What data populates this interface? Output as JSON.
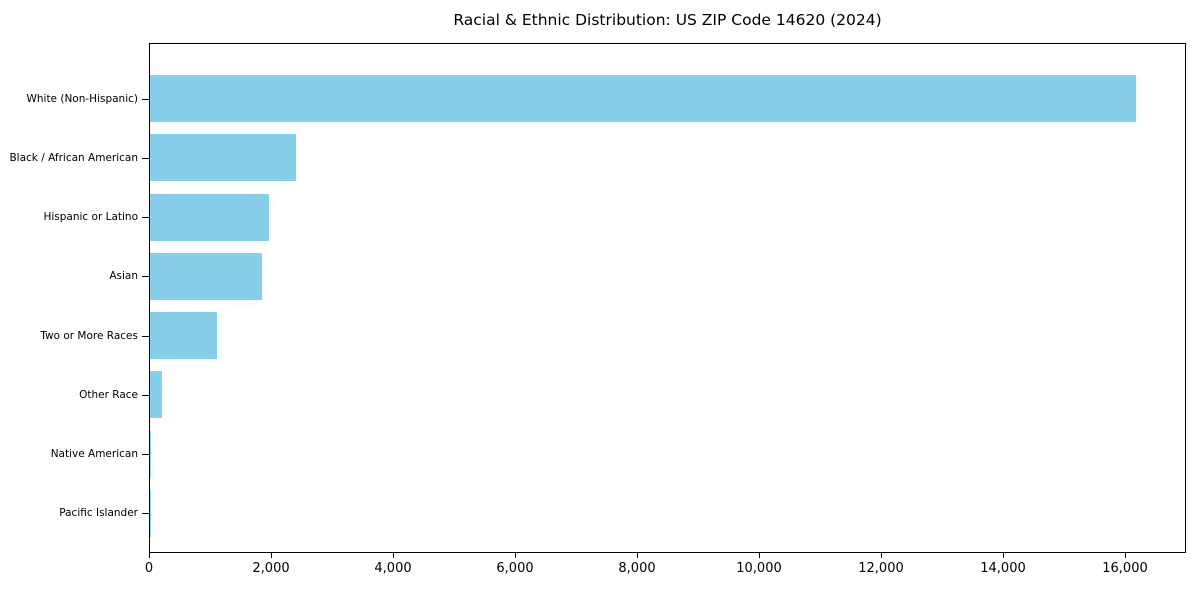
{
  "chart_data": {
    "type": "bar",
    "orientation": "horizontal",
    "title": "Racial & Ethnic Distribution: US ZIP Code 14620 (2024)",
    "categories": [
      "White (Non-Hispanic)",
      "Black / African American",
      "Hispanic or Latino",
      "Asian",
      "Two or More Races",
      "Other Race",
      "Native American",
      "Pacific Islander"
    ],
    "values": [
      16150,
      2400,
      1950,
      1830,
      1100,
      200,
      20,
      10
    ],
    "xlabel": "",
    "ylabel": "",
    "xlim": [
      0,
      16960
    ],
    "xticks": [
      0,
      2000,
      4000,
      6000,
      8000,
      10000,
      12000,
      14000,
      16000
    ],
    "xtick_labels": [
      "0",
      "2,000",
      "4,000",
      "6,000",
      "8,000",
      "10,000",
      "12,000",
      "14,000",
      "16,000"
    ],
    "bar_color": "#87CEEB",
    "grid": false,
    "legend_position": "none"
  },
  "colors": {
    "background": "#ffffff",
    "bar": "#87CEEB",
    "axis": "#000000",
    "text": "#000000"
  }
}
